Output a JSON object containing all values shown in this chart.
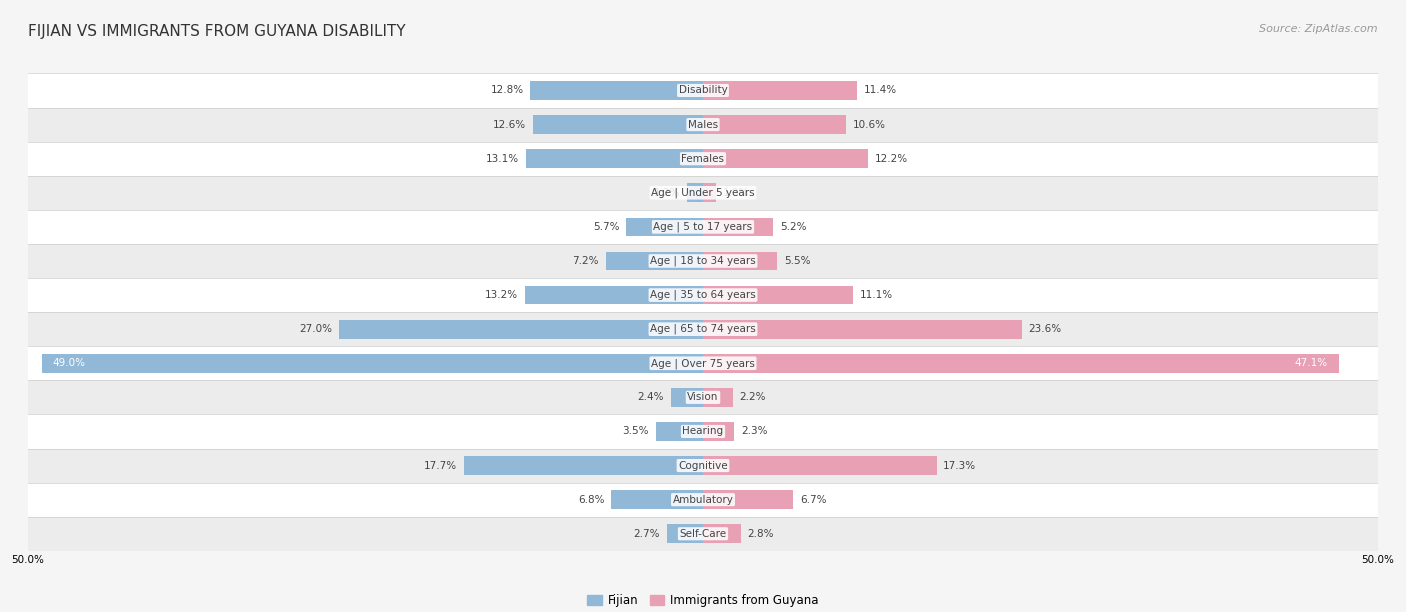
{
  "title": "FIJIAN VS IMMIGRANTS FROM GUYANA DISABILITY",
  "source": "Source: ZipAtlas.com",
  "categories": [
    "Disability",
    "Males",
    "Females",
    "Age | Under 5 years",
    "Age | 5 to 17 years",
    "Age | 18 to 34 years",
    "Age | 35 to 64 years",
    "Age | 65 to 74 years",
    "Age | Over 75 years",
    "Vision",
    "Hearing",
    "Cognitive",
    "Ambulatory",
    "Self-Care"
  ],
  "fijian_values": [
    12.8,
    12.6,
    13.1,
    1.2,
    5.7,
    7.2,
    13.2,
    27.0,
    49.0,
    2.4,
    3.5,
    17.7,
    6.8,
    2.7
  ],
  "guyana_values": [
    11.4,
    10.6,
    12.2,
    1.0,
    5.2,
    5.5,
    11.1,
    23.6,
    47.1,
    2.2,
    2.3,
    17.3,
    6.7,
    2.8
  ],
  "fijian_color": "#92b8d8",
  "guyana_color": "#e8a0b4",
  "axis_limit": 50.0,
  "bg_light": "#ffffff",
  "bg_dark": "#ececec",
  "title_fontsize": 11,
  "label_fontsize": 7.5,
  "value_fontsize": 7.5,
  "legend_fontsize": 8.5,
  "source_fontsize": 8
}
